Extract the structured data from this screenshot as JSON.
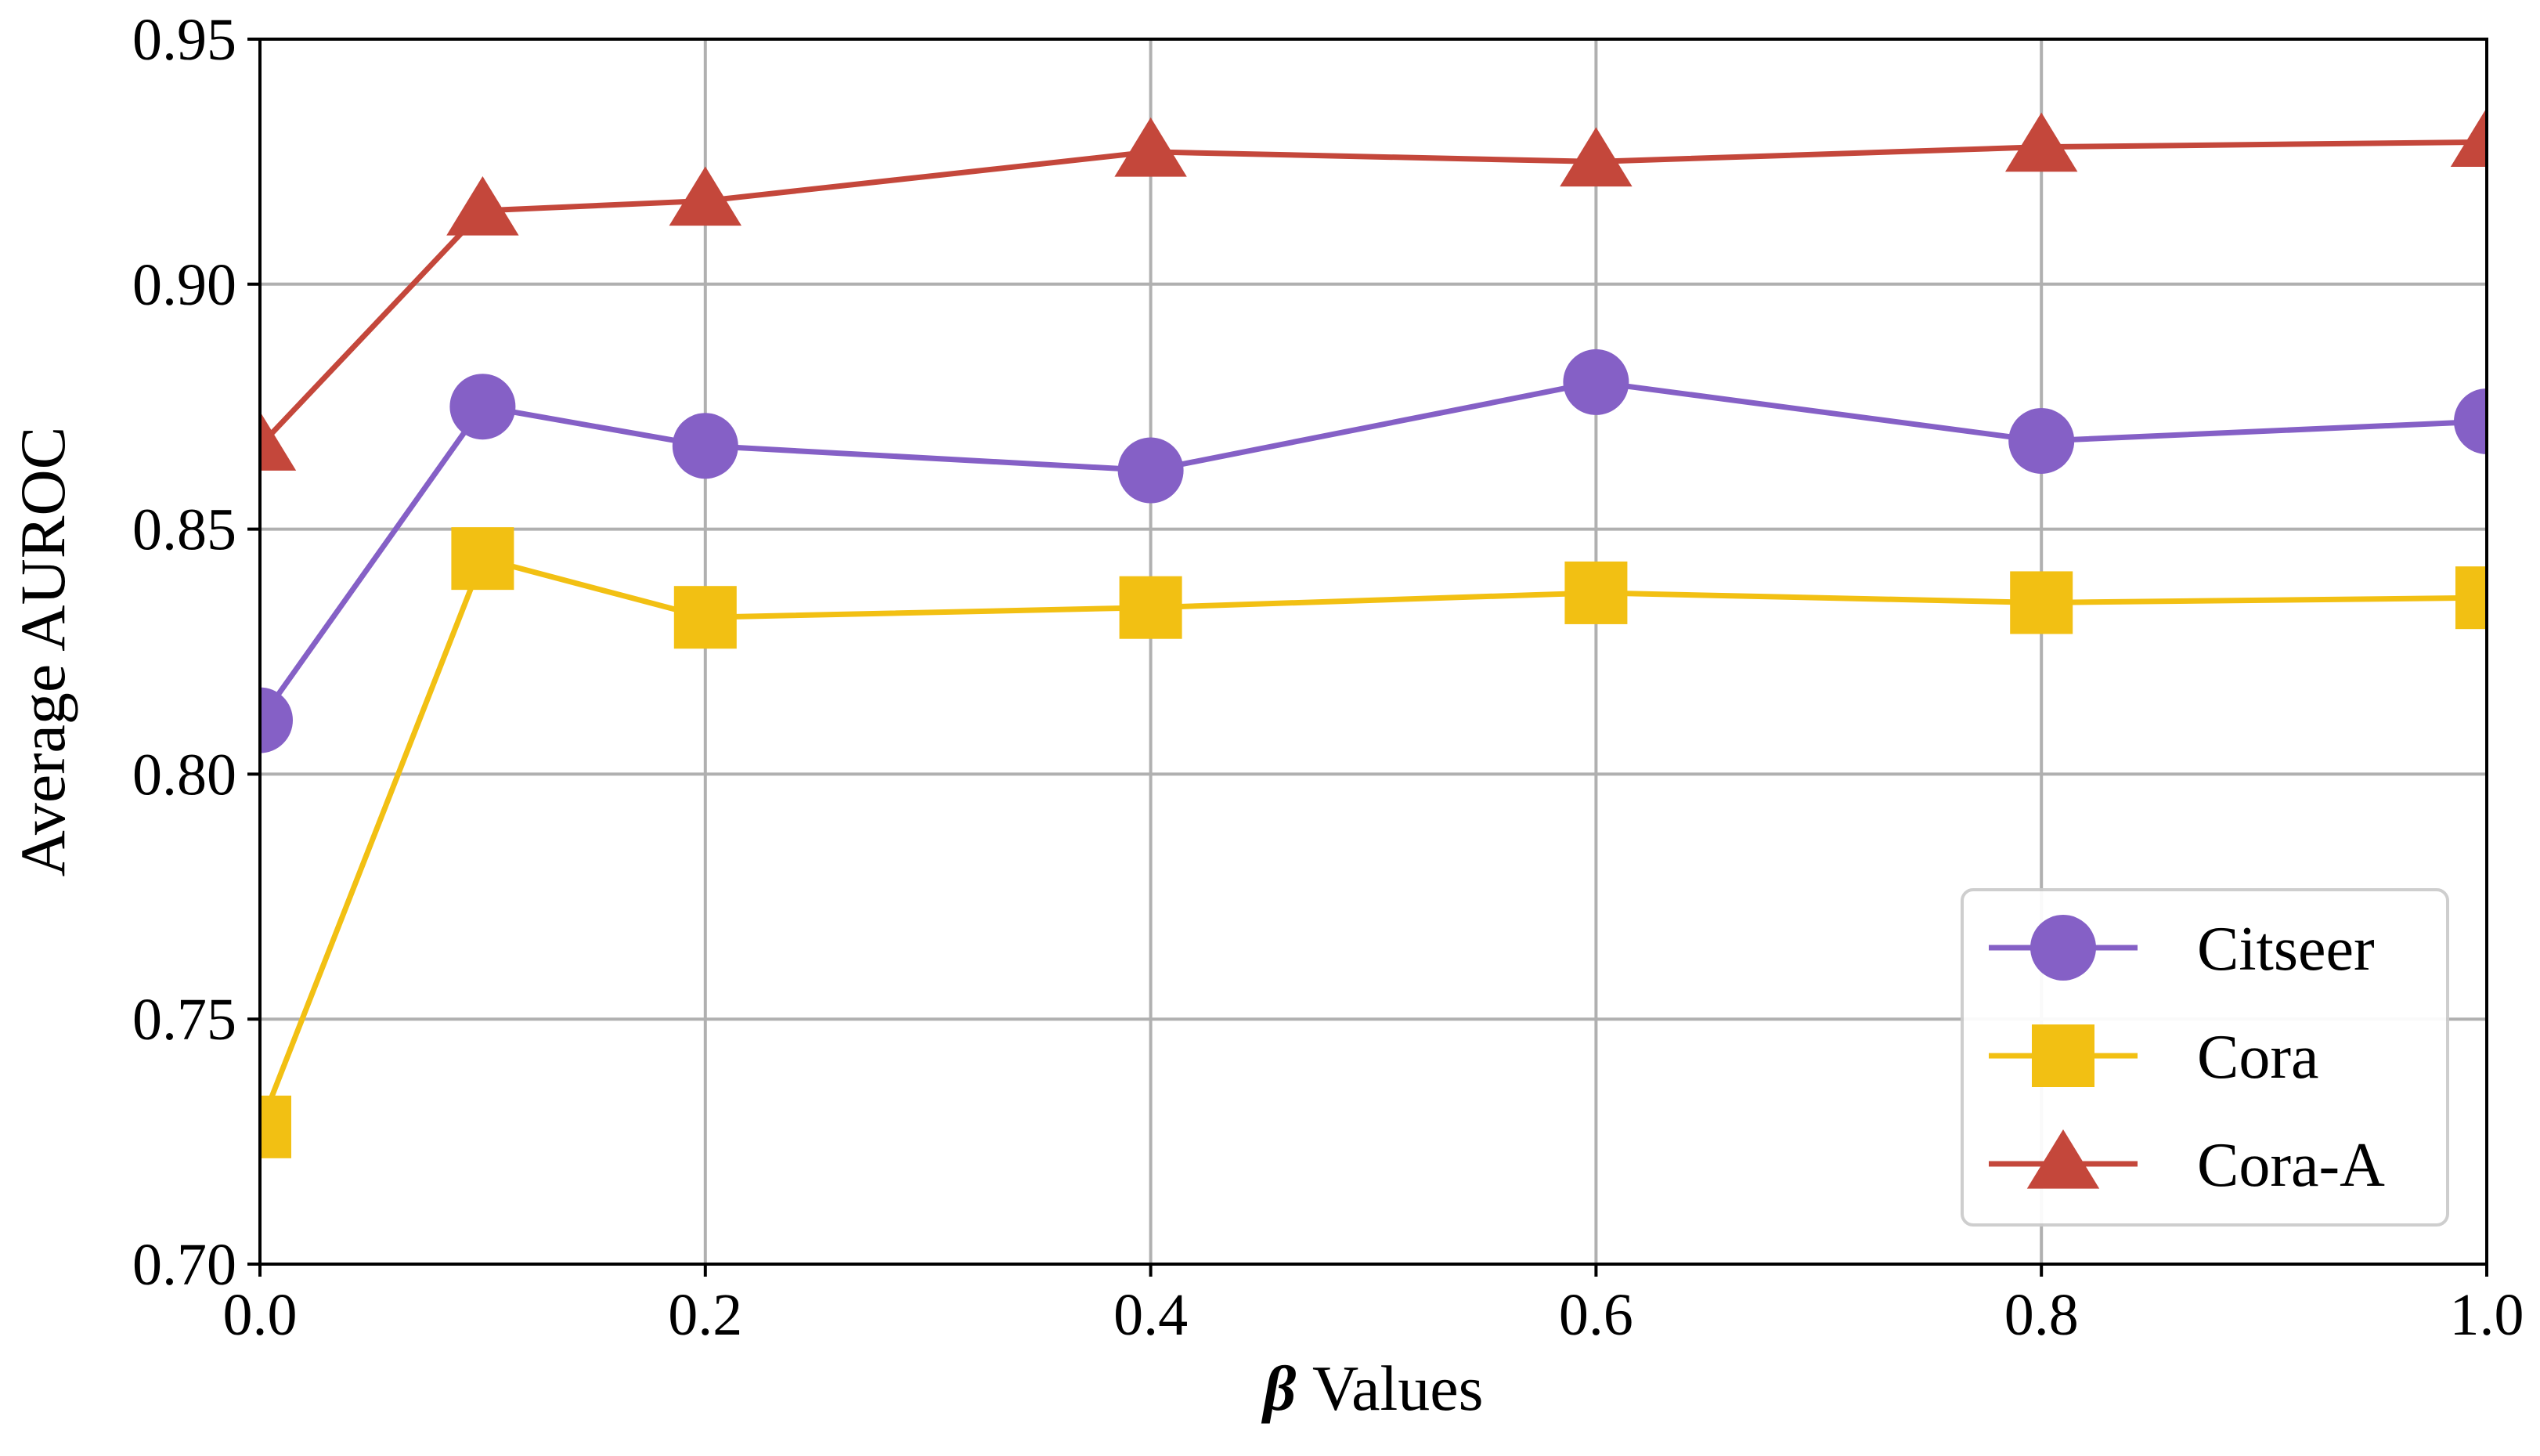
{
  "chart_data": {
    "type": "line",
    "x": [
      0.0,
      0.1,
      0.2,
      0.4,
      0.6,
      0.8,
      1.0
    ],
    "series": [
      {
        "name": "Citseer",
        "values": [
          0.811,
          0.875,
          0.867,
          0.862,
          0.88,
          0.868,
          0.872
        ],
        "color": "#8560c6",
        "marker": "circle"
      },
      {
        "name": "Cora",
        "values": [
          0.728,
          0.844,
          0.832,
          0.834,
          0.837,
          0.835,
          0.836
        ],
        "color": "#f2c013",
        "marker": "square"
      },
      {
        "name": "Cora-A",
        "values": [
          0.867,
          0.915,
          0.917,
          0.927,
          0.925,
          0.928,
          0.929
        ],
        "color": "#c4473b",
        "marker": "triangle"
      }
    ],
    "title": "",
    "xlabel_symbol": "β",
    "xlabel_text": " Values",
    "ylabel": "Average AUROC",
    "xlim": [
      0.0,
      1.0
    ],
    "ylim": [
      0.7,
      0.95
    ],
    "xticks": [
      0.0,
      0.2,
      0.4,
      0.6,
      0.8,
      1.0
    ],
    "xtick_labels": [
      "0.0",
      "0.2",
      "0.4",
      "0.6",
      "0.8",
      "1.0"
    ],
    "yticks": [
      0.7,
      0.75,
      0.8,
      0.85,
      0.9,
      0.95
    ],
    "ytick_labels": [
      "0.70",
      "0.75",
      "0.80",
      "0.85",
      "0.90",
      "0.95"
    ],
    "grid": true,
    "legend_position": "lower-right"
  }
}
